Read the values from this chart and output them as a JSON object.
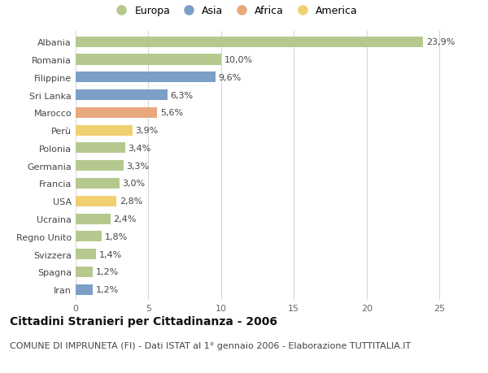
{
  "countries": [
    "Albania",
    "Romania",
    "Filippine",
    "Sri Lanka",
    "Marocco",
    "Perù",
    "Polonia",
    "Germania",
    "Francia",
    "USA",
    "Ucraina",
    "Regno Unito",
    "Svizzera",
    "Spagna",
    "Iran"
  ],
  "values": [
    23.9,
    10.0,
    9.6,
    6.3,
    5.6,
    3.9,
    3.4,
    3.3,
    3.0,
    2.8,
    2.4,
    1.8,
    1.4,
    1.2,
    1.2
  ],
  "labels": [
    "23,9%",
    "10,0%",
    "9,6%",
    "6,3%",
    "5,6%",
    "3,9%",
    "3,4%",
    "3,3%",
    "3,0%",
    "2,8%",
    "2,4%",
    "1,8%",
    "1,4%",
    "1,2%",
    "1,2%"
  ],
  "continents": [
    "Europa",
    "Europa",
    "Asia",
    "Asia",
    "Africa",
    "America",
    "Europa",
    "Europa",
    "Europa",
    "America",
    "Europa",
    "Europa",
    "Europa",
    "Europa",
    "Asia"
  ],
  "continent_colors": {
    "Europa": "#b5c98e",
    "Asia": "#7b9fc7",
    "Africa": "#e8a87c",
    "America": "#f0d070"
  },
  "legend_order": [
    "Europa",
    "Asia",
    "Africa",
    "America"
  ],
  "title": "Cittadini Stranieri per Cittadinanza - 2006",
  "subtitle": "COMUNE DI IMPRUNETA (FI) - Dati ISTAT al 1° gennaio 2006 - Elaborazione TUTTITALIA.IT",
  "xlim": [
    0,
    26
  ],
  "xticks": [
    0,
    5,
    10,
    15,
    20,
    25
  ],
  "background_color": "#ffffff",
  "plot_background": "#ffffff",
  "grid_color": "#d8d8d8",
  "title_fontsize": 10,
  "subtitle_fontsize": 8,
  "label_fontsize": 8,
  "tick_fontsize": 8,
  "legend_fontsize": 9
}
